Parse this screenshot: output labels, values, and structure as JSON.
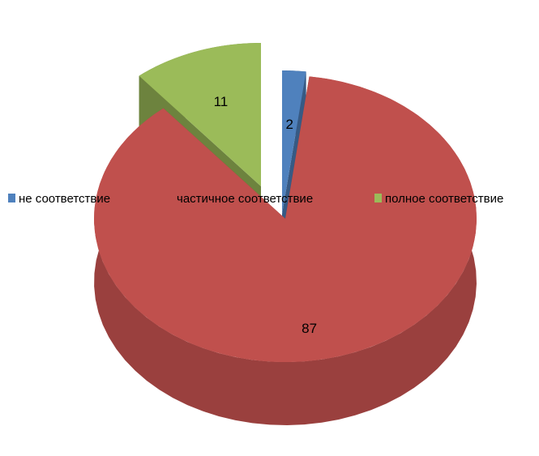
{
  "chart_data": {
    "type": "pie",
    "style": "3d-exploded",
    "legend_position": "middle",
    "series": [
      {
        "name": "не соответствие",
        "value": 2,
        "color": "#4f81bd"
      },
      {
        "name": "частичное соответствие",
        "value": 87,
        "color": "#c0504d"
      },
      {
        "name": "полное соответствие",
        "value": 11,
        "color": "#9bbb59"
      }
    ]
  }
}
